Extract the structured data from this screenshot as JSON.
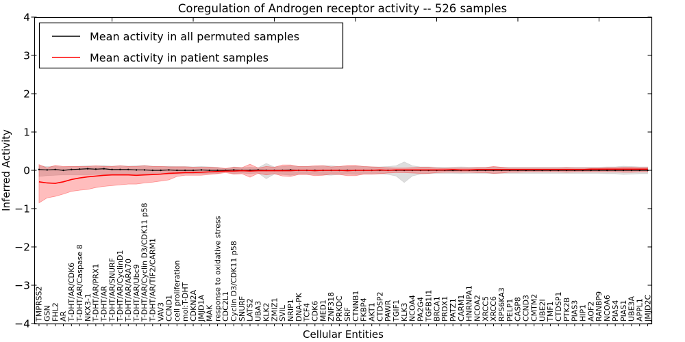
{
  "figure": {
    "title": "Coregulation of Androgen receptor activity -- 526 samples",
    "xlabel": "Cellular Entities",
    "ylabel": "Inferred Activity",
    "background": "#ffffff",
    "frame_color": "#000000"
  },
  "legend": {
    "position": "upper left",
    "entries": [
      {
        "label": "Mean activity in all permuted samples",
        "color": "#000000"
      },
      {
        "label": "Mean activity in patient samples",
        "color": "#ff0000"
      }
    ]
  },
  "chart_data": {
    "type": "line",
    "title": "Coregulation of Androgen receptor activity -- 526 samples",
    "xlabel": "Cellular Entities",
    "ylabel": "Inferred Activity",
    "ylim": [
      -4,
      4
    ],
    "ytick_values": [
      4,
      3,
      2,
      1,
      0,
      -1,
      -2,
      -3,
      -4
    ],
    "ytick_labels": [
      "4",
      "3",
      "2",
      "1",
      "0",
      "−1",
      "−2",
      "−3",
      "−4"
    ],
    "grid": false,
    "legend_position": "upper left",
    "top_tick_indices": [
      9,
      19,
      29,
      39,
      49,
      59,
      69
    ],
    "categories": [
      "TMPRSS2",
      "GSN",
      "FHL2",
      "AR",
      "T-DHT/AR/CDK6",
      "T-DHT/AR/Caspase 8",
      "NKX3-1",
      "T-DHT/AR/PRX1",
      "T-DHT/AR",
      "T-DHT/AR/SNURF",
      "T-DHT/AR/CyclinD1",
      "T-DHT/AR/ARA70",
      "T-DHT/AR/Ubc9",
      "T-DHT/AR/Cyclin D3/CDK11 p58",
      "T-DHT/AR/TIF2/CARM1",
      "VAV3",
      "CCND1",
      "cell proliferation",
      "mol:T-DHT",
      "CDKN2A",
      "JMJD1A",
      "MAK",
      "response to oxidative stress",
      "CDC2L1",
      "Cyclin D3/CDK11 p58",
      "SNURF",
      "LATS2",
      "UBA3",
      "KLK2",
      "ZMIZ1",
      "SVIL",
      "NRIP1",
      "DNA-PK",
      "TCF4",
      "CDK6",
      "MED1",
      "ZNF318",
      "PRKDC",
      "SRF",
      "CTNNB1",
      "FKBP4",
      "AKT1",
      "CTDSP2",
      "PAWR",
      "TGIF1",
      "KLK3",
      "NCOA4",
      "PA2G4",
      "TGFB1I1",
      "BRCA1",
      "PRDX1",
      "PATZ1",
      "CARM1",
      "HNRNPA1",
      "NCOA2",
      "XRCC5",
      "XRCC6",
      "RPS6KA3",
      "PELP1",
      "CASP8",
      "CCND3",
      "CMTM2",
      "UBE2I",
      "TMF1",
      "CTDSP1",
      "PTK2B",
      "PIAS3",
      "HIP1",
      "AOF2",
      "RANBP9",
      "NCOA6",
      "PIAS4",
      "PIAS1",
      "UBE3A",
      "APPL1",
      "JMJD2C"
    ],
    "series": [
      {
        "name": "Mean activity in all permuted samples",
        "color": "#000000",
        "marker": "dot",
        "line_width": 1.2,
        "values": [
          0.02,
          0.01,
          0.02,
          0,
          0.02,
          0.03,
          0.04,
          0.03,
          0.04,
          0.02,
          0.02,
          0.02,
          0.01,
          0.01,
          0,
          0,
          0.01,
          0,
          0,
          0,
          0.01,
          0,
          0,
          0,
          0.01,
          0,
          0,
          0.01,
          0,
          0,
          0,
          0.01,
          0,
          0,
          0,
          0,
          0,
          0,
          0,
          0,
          0,
          0,
          0,
          0,
          0,
          0,
          0,
          0,
          0,
          0,
          0,
          0,
          0,
          0,
          0,
          0,
          0,
          0,
          0,
          0,
          0,
          0,
          0,
          0,
          0,
          0,
          0,
          0,
          0,
          0,
          0,
          0,
          0,
          0,
          0,
          0
        ]
      },
      {
        "name": "Mean activity in patient samples",
        "color": "#ff0000",
        "marker": "none",
        "line_width": 1.6,
        "values": [
          -0.3,
          -0.33,
          -0.34,
          -0.3,
          -0.24,
          -0.2,
          -0.17,
          -0.15,
          -0.13,
          -0.12,
          -0.12,
          -0.12,
          -0.13,
          -0.12,
          -0.11,
          -0.1,
          -0.08,
          -0.07,
          -0.06,
          -0.06,
          -0.05,
          -0.04,
          -0.03,
          -0.02,
          -0.02,
          -0.01,
          -0.02,
          -0.01,
          -0.01,
          -0.01,
          -0.01,
          -0.01,
          0,
          0,
          -0.01,
          0,
          0,
          0,
          -0.01,
          0,
          0,
          0,
          0.01,
          0,
          0.01,
          0.01,
          0.01,
          0.01,
          0.01,
          0.01,
          0.01,
          0.02,
          0.01,
          0.01,
          0.02,
          0.02,
          0.02,
          0.02,
          0.02,
          0.02,
          0.02,
          0.02,
          0.02,
          0.02,
          0.02,
          0.02,
          0.02,
          0.02,
          0.03,
          0.03,
          0.03,
          0.03,
          0.03,
          0.03,
          0.03,
          0.03
        ]
      }
    ],
    "bands": [
      {
        "name": "permuted samples range",
        "fill": "rgba(0,0,0,0.13)",
        "edge": "rgba(0,0,0,0.10)",
        "upper": [
          0.12,
          0.1,
          0.1,
          0.09,
          0.1,
          0.11,
          0.12,
          0.11,
          0.13,
          0.11,
          0.12,
          0.11,
          0.12,
          0.13,
          0.11,
          0.1,
          0.11,
          0.1,
          0.1,
          0.09,
          0.1,
          0.09,
          0.08,
          0.04,
          0.09,
          0.07,
          0.08,
          0.07,
          0.18,
          0.09,
          0.1,
          0.12,
          0.1,
          0.1,
          0.1,
          0.12,
          0.12,
          0.1,
          0.1,
          0.11,
          0.1,
          0.09,
          0.09,
          0.1,
          0.12,
          0.22,
          0.12,
          0.09,
          0.09,
          0.08,
          0.08,
          0.08,
          0.09,
          0.08,
          0.08,
          0.08,
          0.09,
          0.08,
          0.08,
          0.08,
          0.08,
          0.08,
          0.08,
          0.08,
          0.08,
          0.08,
          0.08,
          0.08,
          0.08,
          0.08,
          0.09,
          0.09,
          0.11,
          0.1,
          0.09,
          0.09
        ],
        "lower": [
          -0.16,
          -0.14,
          -0.13,
          -0.12,
          -0.12,
          -0.12,
          -0.12,
          -0.11,
          -0.12,
          -0.11,
          -0.11,
          -0.1,
          -0.11,
          -0.11,
          -0.1,
          -0.1,
          -0.1,
          -0.1,
          -0.09,
          -0.09,
          -0.09,
          -0.08,
          -0.08,
          -0.04,
          -0.09,
          -0.07,
          -0.09,
          -0.07,
          -0.22,
          -0.1,
          -0.11,
          -0.13,
          -0.1,
          -0.1,
          -0.11,
          -0.12,
          -0.13,
          -0.11,
          -0.1,
          -0.11,
          -0.1,
          -0.1,
          -0.09,
          -0.11,
          -0.15,
          -0.32,
          -0.15,
          -0.1,
          -0.09,
          -0.08,
          -0.08,
          -0.08,
          -0.09,
          -0.08,
          -0.08,
          -0.08,
          -0.09,
          -0.08,
          -0.08,
          -0.08,
          -0.08,
          -0.08,
          -0.08,
          -0.08,
          -0.08,
          -0.08,
          -0.08,
          -0.08,
          -0.08,
          -0.08,
          -0.09,
          -0.09,
          -0.11,
          -0.1,
          -0.09,
          -0.09
        ]
      },
      {
        "name": "patient samples range",
        "fill": "rgba(255,0,0,0.26)",
        "edge": "rgba(255,0,0,0.35)",
        "upper": [
          0.15,
          0.06,
          0.13,
          0.1,
          0.1,
          0.1,
          0.1,
          0.12,
          0.1,
          0.1,
          0.12,
          0.1,
          0.1,
          0.12,
          0.1,
          0.1,
          0.09,
          0.09,
          0.09,
          0.08,
          0.08,
          0.08,
          0.07,
          0.05,
          0.08,
          0.07,
          0.16,
          0.06,
          0.1,
          0.08,
          0.14,
          0.14,
          0.1,
          0.1,
          0.12,
          0.12,
          0.09,
          0.1,
          0.13,
          0.13,
          0.1,
          0.09,
          0.08,
          0.07,
          0.06,
          0.06,
          0.07,
          0.08,
          0.08,
          0.06,
          0.05,
          0.06,
          0.06,
          0.06,
          0.07,
          0.07,
          0.1,
          0.08,
          0.06,
          0.06,
          0.06,
          0.06,
          0.06,
          0.06,
          0.06,
          0.07,
          0.06,
          0.06,
          0.06,
          0.06,
          0.07,
          0.07,
          0.08,
          0.08,
          0.07,
          0.07
        ],
        "lower": [
          -0.85,
          -0.72,
          -0.68,
          -0.62,
          -0.55,
          -0.52,
          -0.5,
          -0.45,
          -0.42,
          -0.4,
          -0.38,
          -0.36,
          -0.36,
          -0.33,
          -0.31,
          -0.28,
          -0.25,
          -0.16,
          -0.13,
          -0.13,
          -0.13,
          -0.11,
          -0.09,
          -0.06,
          -0.1,
          -0.09,
          -0.18,
          -0.08,
          -0.12,
          -0.09,
          -0.15,
          -0.16,
          -0.11,
          -0.11,
          -0.14,
          -0.13,
          -0.1,
          -0.11,
          -0.14,
          -0.14,
          -0.1,
          -0.1,
          -0.09,
          -0.07,
          -0.06,
          -0.06,
          -0.07,
          -0.08,
          -0.08,
          -0.06,
          -0.05,
          -0.05,
          -0.05,
          -0.05,
          -0.06,
          -0.06,
          -0.08,
          -0.07,
          -0.05,
          -0.05,
          -0.04,
          -0.04,
          -0.04,
          -0.04,
          -0.04,
          -0.05,
          -0.04,
          -0.04,
          -0.04,
          -0.04,
          -0.04,
          -0.04,
          -0.05,
          -0.05,
          -0.04,
          -0.04
        ]
      }
    ]
  }
}
